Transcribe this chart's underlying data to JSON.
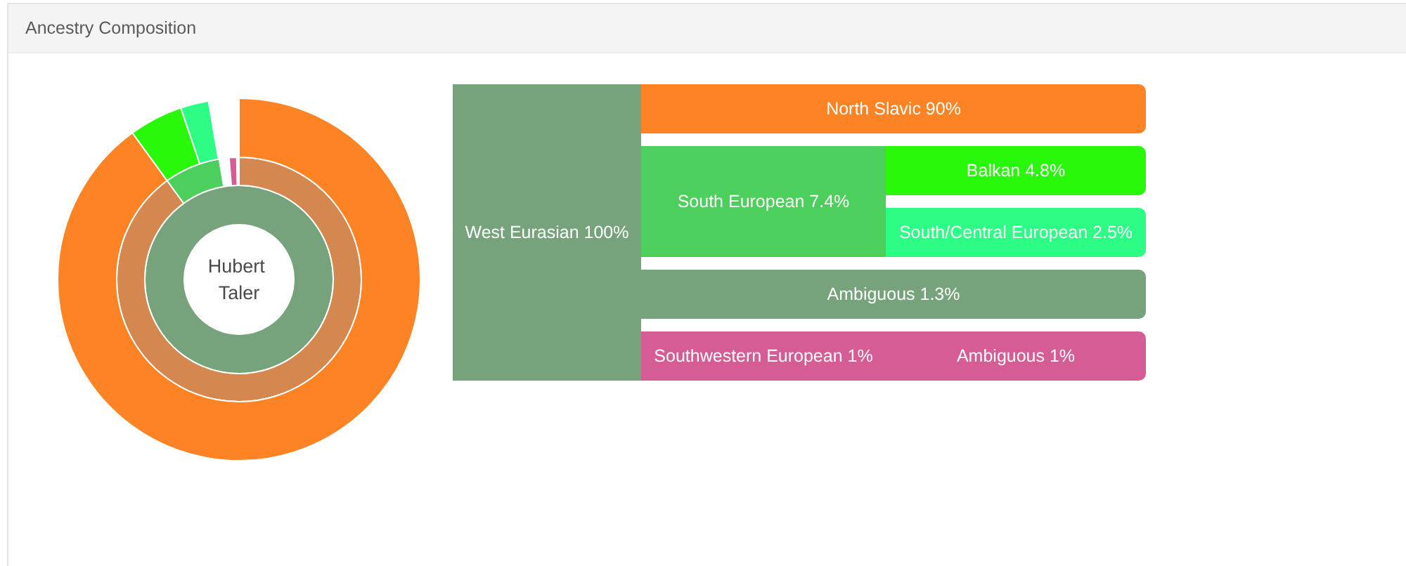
{
  "chart_data": {
    "type": "other",
    "title": "Ancestry Composition",
    "annotations": [
      "Hubert Taler"
    ],
    "categories": [
      "West Eurasian",
      "North Slavic",
      "South European",
      "Balkan",
      "South/Central European",
      "Ambiguous",
      "Southwestern European",
      "Ambiguous"
    ],
    "colors": [
      "#77a37c",
      "#fd8325",
      "#4ccf5c",
      "#29f80a",
      "#2dfc85",
      "#77a37c",
      "#d65c95",
      "#d65c95"
    ],
    "series": [
      {
        "values": [
          100,
          null,
          null,
          null,
          null,
          null,
          null,
          null
        ],
        "value_labels": [
          "100%",
          null,
          null,
          null,
          null,
          null,
          null,
          null
        ],
        "colors": [
          "#77a37c",
          null,
          null,
          null,
          null,
          null,
          null,
          null
        ]
      },
      {
        "values": [
          null,
          null,
          7.4,
          null,
          null,
          1.3,
          1,
          null
        ],
        "value_labels": [
          null,
          null,
          "7.4%",
          null,
          null,
          "1.3%",
          "1%",
          null
        ],
        "colors": [
          null,
          "#d4884f",
          "#4ccf5c",
          null,
          null,
          null,
          "#d65c95",
          null
        ]
      },
      {
        "values": [
          null,
          90,
          null,
          4.8,
          2.5,
          null,
          null,
          1
        ],
        "value_labels": [
          null,
          "90%",
          null,
          "4.8%",
          "2.5%",
          null,
          null,
          "1%"
        ],
        "colors": [
          null,
          "#fd8325",
          null,
          "#29f80a",
          "#2dfc85",
          null,
          null,
          null
        ]
      }
    ]
  }
}
